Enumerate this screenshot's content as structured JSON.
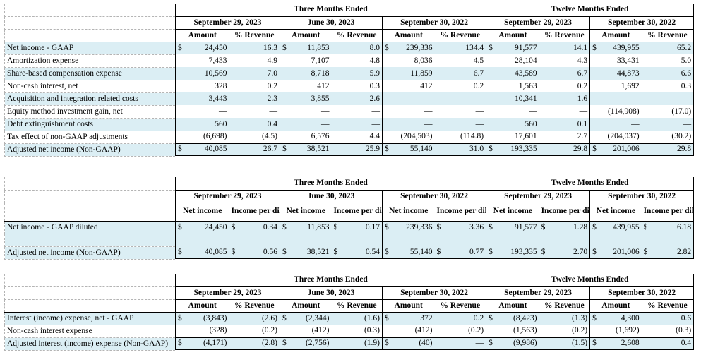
{
  "groups": {
    "three": "Three Months Ended",
    "twelve": "Twelve Months Ended"
  },
  "periods": [
    "September 29, 2023",
    "June 30, 2023",
    "September 30, 2022",
    "September 29, 2023",
    "September 30, 2022"
  ],
  "col_headers": {
    "amount": "Amount",
    "pct_revenue": "% Revenue",
    "net_income": "Net income",
    "income_per_share": "Income per diluted share",
    "dollar": "$"
  },
  "table1": {
    "rows": [
      {
        "label": "Net income - GAAP",
        "dollar": true,
        "cells": [
          [
            "24,450",
            "16.3"
          ],
          [
            "11,853",
            "8.0"
          ],
          [
            "239,336",
            "134.4"
          ],
          [
            "91,577",
            "14.1"
          ],
          [
            "439,955",
            "65.2"
          ]
        ]
      },
      {
        "label": "Amortization expense",
        "cells": [
          [
            "7,433",
            "4.9"
          ],
          [
            "7,107",
            "4.8"
          ],
          [
            "8,036",
            "4.5"
          ],
          [
            "28,104",
            "4.3"
          ],
          [
            "33,431",
            "5.0"
          ]
        ]
      },
      {
        "label": "Share-based compensation expense",
        "cells": [
          [
            "10,569",
            "7.0"
          ],
          [
            "8,718",
            "5.9"
          ],
          [
            "11,859",
            "6.7"
          ],
          [
            "43,589",
            "6.7"
          ],
          [
            "44,873",
            "6.6"
          ]
        ]
      },
      {
        "label": "Non-cash interest, net",
        "cells": [
          [
            "328",
            "0.2"
          ],
          [
            "412",
            "0.3"
          ],
          [
            "412",
            "0.2"
          ],
          [
            "1,563",
            "0.2"
          ],
          [
            "1,692",
            "0.3"
          ]
        ]
      },
      {
        "label": "Acquisition and integration related costs",
        "cells": [
          [
            "3,443",
            "2.3"
          ],
          [
            "3,855",
            "2.6"
          ],
          [
            "—",
            "—"
          ],
          [
            "10,341",
            "1.6"
          ],
          [
            "—",
            "—"
          ]
        ]
      },
      {
        "label": "Equity method investment gain, net",
        "cells": [
          [
            "—",
            "—"
          ],
          [
            "—",
            "—"
          ],
          [
            "—",
            "—"
          ],
          [
            "—",
            "—"
          ],
          [
            "(114,908)",
            "(17.0)"
          ]
        ]
      },
      {
        "label": "Debt extinguishment costs",
        "cells": [
          [
            "560",
            "0.4"
          ],
          [
            "—",
            "—"
          ],
          [
            "—",
            "—"
          ],
          [
            "560",
            "0.1"
          ],
          [
            "—",
            "—"
          ]
        ]
      },
      {
        "label": "Tax effect of non-GAAP adjustments",
        "cells": [
          [
            "(6,698)",
            "(4.5)"
          ],
          [
            "6,576",
            "4.4"
          ],
          [
            "(204,503)",
            "(114.8)"
          ],
          [
            "17,601",
            "2.7"
          ],
          [
            "(204,037)",
            "(30.2)"
          ]
        ]
      },
      {
        "label": "Adjusted net income (Non-GAAP)",
        "dollar": true,
        "total": true,
        "cells": [
          [
            "40,085",
            "26.7"
          ],
          [
            "38,521",
            "25.9"
          ],
          [
            "55,140",
            "31.0"
          ],
          [
            "193,335",
            "29.8"
          ],
          [
            "201,006",
            "29.8"
          ]
        ]
      }
    ]
  },
  "table2": {
    "rows": [
      {
        "label": "Net income - GAAP diluted",
        "cells": [
          [
            "24,450",
            "0.34"
          ],
          [
            "11,853",
            "0.17"
          ],
          [
            "239,336",
            "3.36"
          ],
          [
            "91,577",
            "1.28"
          ],
          [
            "439,955",
            "6.18"
          ]
        ]
      },
      {
        "label": "Adjusted net income (Non-GAAP)",
        "cells": [
          [
            "40,085",
            "0.56"
          ],
          [
            "38,521",
            "0.54"
          ],
          [
            "55,140",
            "0.77"
          ],
          [
            "193,335",
            "2.70"
          ],
          [
            "201,006",
            "2.82"
          ]
        ]
      }
    ]
  },
  "table3": {
    "rows": [
      {
        "label": "Interest (income) expense, net - GAAP",
        "dollar": true,
        "cells": [
          [
            "(3,843)",
            "(2.6)"
          ],
          [
            "(2,344)",
            "(1.6)"
          ],
          [
            "372",
            "0.2"
          ],
          [
            "(8,423)",
            "(1.3)"
          ],
          [
            "4,300",
            "0.6"
          ]
        ]
      },
      {
        "label": "Non-cash interest expense",
        "cells": [
          [
            "(328)",
            "(0.2)"
          ],
          [
            "(412)",
            "(0.3)"
          ],
          [
            "(412)",
            "(0.2)"
          ],
          [
            "(1,563)",
            "(0.2)"
          ],
          [
            "(1,692)",
            "(0.3)"
          ]
        ]
      },
      {
        "label": "Adjusted interest (income) expense (Non-GAAP)",
        "dollar": true,
        "total": true,
        "cells": [
          [
            "(4,171)",
            "(2.8)"
          ],
          [
            "(2,756)",
            "(1.9)"
          ],
          [
            "(40)",
            "—"
          ],
          [
            "(9,986)",
            "(1.5)"
          ],
          [
            "2,608",
            "0.4"
          ]
        ]
      }
    ]
  }
}
